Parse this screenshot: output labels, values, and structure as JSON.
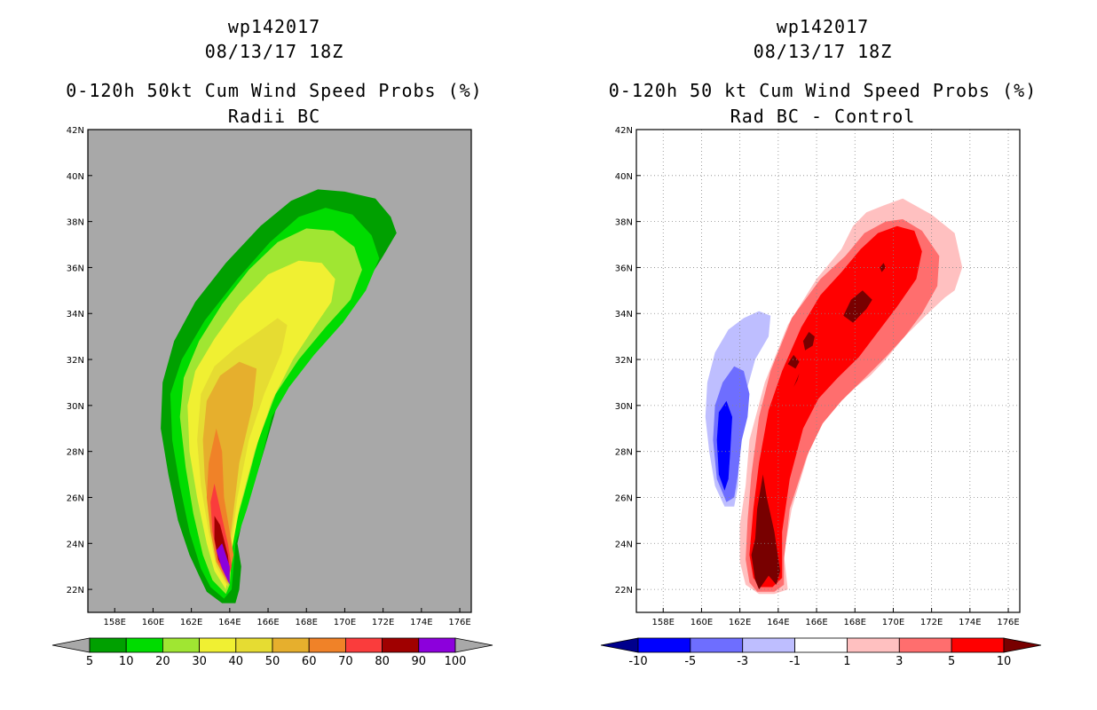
{
  "charts": [
    {
      "header_line1": "wp142017",
      "header_line2": "08/13/17 18Z",
      "title": "0-120h 50kt Cum Wind Speed Probs (%)",
      "subtitle": "Radii BC",
      "colorbar_labels": [
        "5",
        "10",
        "20",
        "30",
        "40",
        "50",
        "60",
        "70",
        "80",
        "90",
        "100"
      ],
      "colors": {
        "background": "#a8a8a8",
        "bins": [
          "#00a000",
          "#00dc00",
          "#a0e632",
          "#f0f032",
          "#e6dc32",
          "#e6af2d",
          "#f08228",
          "#fa3c3c",
          "#a00000",
          "#8c00dc"
        ],
        "under": "#a8a8a8",
        "over": "#a8a8a8"
      }
    },
    {
      "header_line1": "wp142017",
      "header_line2": "08/13/17 18Z",
      "title": "0-120h 50 kt Cum Wind Speed Probs (%)",
      "subtitle": "Rad BC - Control",
      "colorbar_labels": [
        "-10",
        "-5",
        "-3",
        "-1",
        "1",
        "3",
        "5",
        "10"
      ],
      "colors": {
        "background": "#ffffff",
        "bins": [
          "#0000ff",
          "#6e6eff",
          "#bebeff",
          "#ffffff",
          "#ffc0c0",
          "#ff6e6e",
          "#ff0000"
        ],
        "under": "#00008c",
        "over": "#780000"
      }
    }
  ],
  "chart_data": [
    {
      "type": "heatmap",
      "title": "0-120h 50kt Cum Wind Speed Probs (%)",
      "subtitle": "Radii BC",
      "x_ticks": [
        "158E",
        "160E",
        "162E",
        "164E",
        "166E",
        "168E",
        "170E",
        "172E",
        "174E",
        "176E"
      ],
      "y_ticks": [
        "22N",
        "24N",
        "26N",
        "28N",
        "30N",
        "32N",
        "34N",
        "36N",
        "38N",
        "40N",
        "42N"
      ],
      "xlim": [
        156.6,
        176.6
      ],
      "ylim": [
        21.0,
        42.0
      ],
      "grid": false,
      "levels": [
        5,
        10,
        20,
        30,
        40,
        50,
        60,
        70,
        80,
        90,
        100
      ],
      "contours": [
        {
          "level": 5,
          "lon": [
            163.6,
            162.8,
            162.4,
            161.9,
            161.3,
            160.8,
            160.4,
            160.5,
            161.1,
            162.2,
            163.8,
            165.6,
            167.2,
            168.6,
            170.0,
            171.6,
            172.4,
            172.7,
            172.0,
            171.1,
            169.3,
            167.9,
            166.8,
            166.3,
            165.6,
            164.8,
            164.4,
            164.6,
            164.5,
            164.3,
            163.6
          ],
          "lat": [
            21.4,
            21.9,
            22.6,
            23.5,
            25.0,
            27.0,
            29.0,
            31.0,
            32.8,
            34.5,
            36.2,
            37.8,
            38.9,
            39.4,
            39.3,
            39.0,
            38.2,
            37.5,
            36.5,
            35.3,
            33.9,
            32.5,
            31.0,
            29.5,
            27.5,
            25.5,
            24.0,
            23.0,
            22.0,
            21.4,
            21.4
          ]
        },
        {
          "level": 10,
          "lon": [
            163.7,
            163.0,
            162.5,
            161.9,
            161.4,
            161.0,
            160.9,
            161.5,
            162.7,
            164.4,
            166.1,
            167.6,
            169.0,
            170.4,
            171.4,
            171.8,
            171.1,
            169.9,
            168.4,
            167.1,
            166.2,
            165.6,
            164.9,
            164.3,
            164.2,
            164.1,
            163.7
          ],
          "lat": [
            21.6,
            22.1,
            22.9,
            24.5,
            26.5,
            28.5,
            30.5,
            32.0,
            33.7,
            35.5,
            37.1,
            38.2,
            38.6,
            38.3,
            37.4,
            36.4,
            35.0,
            33.6,
            32.2,
            30.8,
            29.5,
            27.5,
            25.5,
            24.0,
            23.0,
            22.0,
            21.6
          ]
        },
        {
          "level": 20,
          "lon": [
            163.8,
            163.1,
            162.6,
            162.1,
            161.7,
            161.4,
            161.6,
            162.4,
            163.6,
            165.0,
            166.5,
            168.0,
            169.4,
            170.5,
            170.9,
            170.3,
            169.0,
            167.6,
            166.4,
            165.5,
            164.8,
            164.2,
            164.1,
            164.0,
            163.8
          ],
          "lat": [
            21.8,
            22.4,
            23.5,
            25.3,
            27.3,
            29.5,
            31.2,
            32.8,
            34.4,
            35.9,
            37.1,
            37.7,
            37.6,
            36.9,
            35.9,
            34.6,
            33.4,
            32.0,
            30.5,
            28.5,
            26.3,
            24.5,
            23.3,
            22.2,
            21.8
          ]
        },
        {
          "level": 30,
          "lon": [
            163.8,
            163.2,
            162.8,
            162.3,
            161.9,
            161.8,
            162.2,
            163.2,
            164.5,
            166.0,
            167.6,
            168.8,
            169.5,
            169.3,
            168.4,
            167.3,
            166.2,
            165.3,
            164.5,
            164.0,
            163.8
          ],
          "lat": [
            22.0,
            22.8,
            24.0,
            26.0,
            28.0,
            30.0,
            31.5,
            32.9,
            34.4,
            35.7,
            36.3,
            36.2,
            35.5,
            34.5,
            33.4,
            32.0,
            30.2,
            28.0,
            25.5,
            23.2,
            22.0
          ]
        },
        {
          "level": 40,
          "lon": [
            163.9,
            163.3,
            162.9,
            162.5,
            162.3,
            162.5,
            163.2,
            164.3,
            165.5,
            166.5,
            167.0,
            166.7,
            165.8,
            165.0,
            164.4,
            164.0,
            163.9
          ],
          "lat": [
            22.1,
            23.0,
            24.5,
            26.5,
            28.5,
            30.5,
            31.7,
            32.5,
            33.2,
            33.8,
            33.5,
            32.3,
            30.5,
            28.5,
            26.0,
            23.5,
            22.1
          ]
        },
        {
          "level": 50,
          "lon": [
            163.9,
            163.3,
            163.0,
            162.7,
            162.6,
            162.8,
            163.5,
            164.5,
            165.4,
            165.2,
            164.5,
            164.0,
            163.9
          ],
          "lat": [
            22.2,
            23.2,
            24.8,
            26.8,
            28.5,
            30.2,
            31.3,
            31.9,
            31.6,
            30.0,
            27.5,
            24.0,
            22.2
          ]
        },
        {
          "level": 60,
          "lon": [
            163.9,
            163.3,
            163.0,
            162.8,
            162.9,
            163.3,
            163.6,
            163.7,
            164.2,
            163.9
          ],
          "lat": [
            22.3,
            23.2,
            24.5,
            26.0,
            27.5,
            29.0,
            28.0,
            26.0,
            23.5,
            22.3
          ]
        },
        {
          "level": 70,
          "lon": [
            163.9,
            163.4,
            163.1,
            163.0,
            163.2,
            163.5,
            163.9,
            164.1,
            163.9
          ],
          "lat": [
            22.4,
            23.2,
            24.5,
            25.8,
            26.6,
            25.5,
            24.0,
            23.0,
            22.4
          ]
        },
        {
          "level": 80,
          "lon": [
            163.9,
            163.4,
            163.2,
            163.2,
            163.5,
            163.9,
            164.0,
            163.9
          ],
          "lat": [
            22.5,
            23.3,
            24.2,
            25.2,
            24.8,
            23.5,
            22.8,
            22.5
          ]
        },
        {
          "level": 90,
          "lon": [
            164.0,
            163.6,
            163.3,
            163.6,
            164.0,
            164.0
          ],
          "lat": [
            22.2,
            22.9,
            23.7,
            24.0,
            23.0,
            22.2
          ]
        }
      ]
    },
    {
      "type": "heatmap",
      "title": "0-120h 50 kt Cum Wind Speed Probs (%)",
      "subtitle": "Rad BC - Control",
      "x_ticks": [
        "158E",
        "160E",
        "162E",
        "164E",
        "166E",
        "168E",
        "170E",
        "172E",
        "174E",
        "176E"
      ],
      "y_ticks": [
        "22N",
        "24N",
        "26N",
        "28N",
        "30N",
        "32N",
        "34N",
        "36N",
        "38N",
        "40N",
        "42N"
      ],
      "xlim": [
        156.6,
        176.6
      ],
      "ylim": [
        21.0,
        42.0
      ],
      "grid": true,
      "levels": [
        -10,
        -5,
        -3,
        -1,
        1,
        3,
        5,
        10
      ],
      "contours": [
        {
          "level": -1,
          "lon": [
            161.2,
            160.7,
            160.4,
            160.2,
            160.3,
            160.7,
            161.4,
            162.2,
            163.0,
            163.6,
            163.5,
            162.8,
            162.3,
            162.0,
            161.9,
            161.7,
            161.2
          ],
          "lat": [
            25.6,
            26.5,
            28.0,
            29.5,
            31.0,
            32.3,
            33.3,
            33.8,
            34.1,
            33.9,
            33.0,
            32.0,
            30.5,
            28.5,
            26.5,
            25.6,
            25.6
          ]
        },
        {
          "level": -3,
          "lon": [
            161.3,
            160.8,
            160.6,
            160.7,
            161.1,
            161.7,
            162.2,
            162.5,
            162.4,
            162.1,
            161.9,
            161.7,
            161.3
          ],
          "lat": [
            25.8,
            26.8,
            28.5,
            30.0,
            31.0,
            31.7,
            31.5,
            30.5,
            29.5,
            28.5,
            27.0,
            26.0,
            25.8
          ]
        },
        {
          "level": -5,
          "lon": [
            161.2,
            160.9,
            160.8,
            160.9,
            161.3,
            161.6,
            161.5,
            161.4,
            161.2
          ],
          "lat": [
            26.3,
            27.0,
            28.5,
            29.7,
            30.2,
            29.5,
            28.0,
            26.8,
            26.3
          ]
        },
        {
          "level": 1,
          "lon": [
            162.3,
            162.0,
            162.0,
            162.3,
            162.5,
            163.3,
            164.5,
            166.0,
            167.3,
            167.9,
            168.6,
            169.5,
            170.5,
            172.0,
            173.2,
            173.6,
            173.2,
            172.7,
            171.8,
            170.6,
            169.6,
            168.8,
            167.6,
            166.5,
            165.6,
            164.7,
            164.3,
            164.5,
            163.8,
            163.0,
            162.3
          ],
          "lat": [
            22.2,
            23.2,
            24.8,
            26.5,
            28.5,
            31.0,
            33.5,
            35.5,
            36.8,
            37.8,
            38.4,
            38.7,
            39.0,
            38.3,
            37.5,
            36.0,
            35.0,
            34.7,
            34.0,
            33.0,
            32.0,
            31.3,
            30.5,
            29.5,
            28.0,
            25.5,
            23.5,
            22.0,
            21.8,
            21.8,
            22.2
          ]
        },
        {
          "level": 3,
          "lon": [
            162.5,
            162.3,
            162.4,
            162.6,
            163.0,
            163.6,
            164.7,
            166.2,
            167.5,
            168.5,
            169.6,
            170.5,
            171.5,
            172.4,
            172.3,
            171.5,
            170.6,
            169.6,
            168.4,
            167.3,
            166.3,
            165.5,
            164.6,
            164.3,
            164.3,
            163.8,
            162.9,
            162.5
          ],
          "lat": [
            22.3,
            23.3,
            25.0,
            27.0,
            29.5,
            31.5,
            33.8,
            35.5,
            36.5,
            37.5,
            38.0,
            38.1,
            37.6,
            36.5,
            35.2,
            34.0,
            33.0,
            32.1,
            31.1,
            30.2,
            29.2,
            27.8,
            25.5,
            23.3,
            22.2,
            21.9,
            21.9,
            22.3
          ]
        },
        {
          "level": 5,
          "lon": [
            162.7,
            162.5,
            162.7,
            163.0,
            163.5,
            164.2,
            165.2,
            166.2,
            167.3,
            168.3,
            169.2,
            170.2,
            171.1,
            171.5,
            171.2,
            170.2,
            169.2,
            168.2,
            167.1,
            166.1,
            165.3,
            164.6,
            164.2,
            164.2,
            163.7,
            163.1,
            162.7
          ],
          "lat": [
            22.5,
            23.5,
            25.5,
            27.5,
            29.8,
            31.5,
            33.4,
            34.8,
            35.8,
            36.8,
            37.5,
            37.8,
            37.6,
            36.7,
            35.5,
            34.3,
            33.2,
            32.1,
            31.2,
            30.3,
            29.0,
            26.8,
            24.5,
            22.5,
            22.1,
            22.1,
            22.5
          ]
        },
        {
          "level": 10,
          "lon": [
            162.8,
            162.6,
            162.8,
            162.9,
            163.2,
            163.4,
            163.8,
            164.1,
            163.9,
            163.5,
            163.0,
            162.8
          ],
          "lat": [
            22.4,
            23.5,
            24.2,
            25.5,
            27.0,
            26.0,
            24.5,
            22.8,
            22.2,
            22.6,
            22.0,
            22.4
          ]
        },
        {
          "level": 10,
          "lon": [
            167.4,
            167.8,
            168.4,
            168.9,
            168.6,
            167.9,
            167.4
          ],
          "lat": [
            33.9,
            34.6,
            35.0,
            34.6,
            34.2,
            33.6,
            33.9
          ]
        },
        {
          "level": 10,
          "lon": [
            165.3,
            165.6,
            165.9,
            165.8,
            165.4,
            165.3
          ],
          "lat": [
            32.8,
            33.2,
            33.0,
            32.6,
            32.4,
            32.8
          ]
        },
        {
          "level": 10,
          "lon": [
            164.5,
            164.8,
            165.1,
            164.9,
            164.5
          ],
          "lat": [
            31.8,
            32.2,
            31.9,
            31.6,
            31.8
          ]
        },
        {
          "level": 10,
          "lon": [
            164.9,
            165.1,
            165.0,
            164.8,
            164.9
          ],
          "lat": [
            31.0,
            31.4,
            31.1,
            30.8,
            31.0
          ]
        },
        {
          "level": 10,
          "lon": [
            169.4,
            169.6,
            169.5,
            169.3,
            169.4
          ],
          "lat": [
            35.8,
            36.0,
            36.2,
            36.0,
            35.8
          ]
        }
      ]
    }
  ]
}
